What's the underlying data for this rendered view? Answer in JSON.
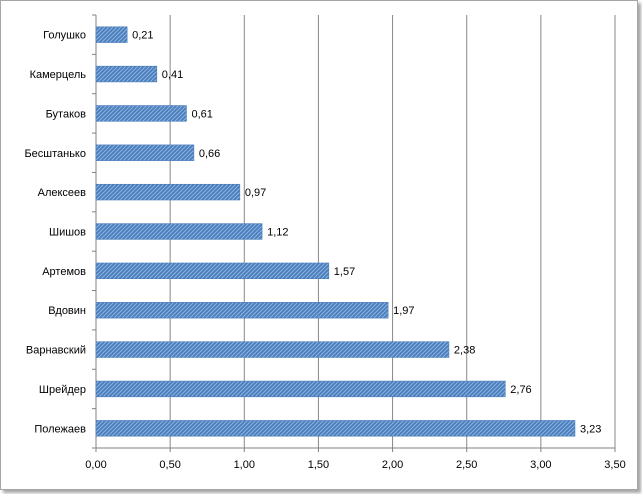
{
  "chart_data": {
    "type": "bar",
    "orientation": "horizontal",
    "title": "",
    "xlabel": "",
    "ylabel": "",
    "categories": [
      "Голушко",
      "Камерцель",
      "Бутаков",
      "Бесштанько",
      "Алексеев",
      "Шишов",
      "Артемов",
      "Вдовин",
      "Варнавский",
      "Шрейдер",
      "Полежаев"
    ],
    "values": [
      0.21,
      0.41,
      0.61,
      0.66,
      0.97,
      1.12,
      1.57,
      1.97,
      2.38,
      2.76,
      3.23
    ],
    "value_labels": [
      "0,21",
      "0,41",
      "0,61",
      "0,66",
      "0,97",
      "1,12",
      "1,57",
      "1,97",
      "2,38",
      "2,76",
      "3,23"
    ],
    "xlim": [
      0,
      3.5
    ],
    "x_ticks": [
      "0,00",
      "0,50",
      "1,00",
      "1,50",
      "2,00",
      "2,50",
      "3,00",
      "3,50"
    ],
    "grid": "vertical",
    "legend": "none",
    "colors": {
      "bar": "#4a7ebb",
      "bar_hatch": "#8db3e2",
      "grid": "#888888",
      "axis": "#808080"
    }
  }
}
